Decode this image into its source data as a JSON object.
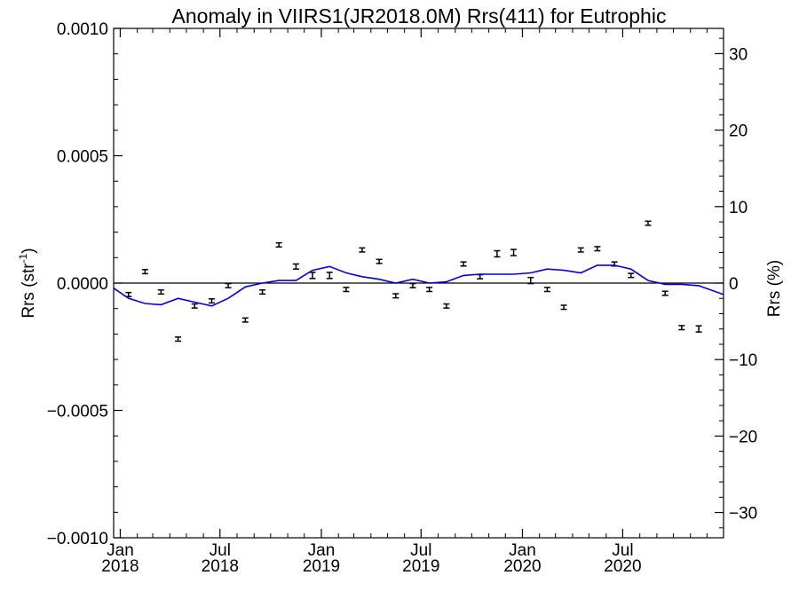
{
  "chart_data": {
    "type": "scatter",
    "title": "Anomaly in VIIRS1(JR2018.0M) Rrs(411) for Eutrophic",
    "ylabel_left": "Rrs (str",
    "ylabel_left_sup": "-1",
    "ylabel_left_close": ")",
    "ylabel_right": "Rrs (%)",
    "ylim_left": [
      -0.001,
      0.001
    ],
    "ylim_right": [
      -33.3,
      33.3
    ],
    "xlim": [
      "2017-12-20",
      "2020-12-31"
    ],
    "left_ticks": [
      {
        "value": 0.001,
        "label": "0.0010"
      },
      {
        "value": 0.0005,
        "label": "0.0005"
      },
      {
        "value": 0.0,
        "label": "0.0000"
      },
      {
        "value": -0.0005,
        "label": "−0.0005"
      },
      {
        "value": -0.001,
        "label": "−0.0010"
      }
    ],
    "right_ticks": [
      {
        "value": 30,
        "label": "30"
      },
      {
        "value": 20,
        "label": "20"
      },
      {
        "value": 10,
        "label": "10"
      },
      {
        "value": 0,
        "label": "0"
      },
      {
        "value": -10,
        "label": "−10"
      },
      {
        "value": -20,
        "label": "−20"
      },
      {
        "value": -30,
        "label": "−30"
      }
    ],
    "x_ticks": [
      {
        "date": "2018-01-01",
        "month": "Jan",
        "year": "2018"
      },
      {
        "date": "2018-07-01",
        "month": "Jul",
        "year": "2018"
      },
      {
        "date": "2019-01-01",
        "month": "Jan",
        "year": "2019"
      },
      {
        "date": "2019-07-01",
        "month": "Jul",
        "year": "2019"
      },
      {
        "date": "2020-01-01",
        "month": "Jan",
        "year": "2020"
      },
      {
        "date": "2020-07-01",
        "month": "Jul",
        "year": "2020"
      }
    ],
    "zero_line": true,
    "series": [
      {
        "kind": "points_with_errorbars",
        "color": "#000000",
        "points": [
          {
            "x": "2018-01-16",
            "y": -4.5e-05,
            "err": 8e-06
          },
          {
            "x": "2018-02-15",
            "y": 4.5e-05,
            "err": 8e-06
          },
          {
            "x": "2018-03-16",
            "y": -3.5e-05,
            "err": 8e-06
          },
          {
            "x": "2018-04-16",
            "y": -0.00022,
            "err": 8e-06
          },
          {
            "x": "2018-05-16",
            "y": -9e-05,
            "err": 8e-06
          },
          {
            "x": "2018-06-16",
            "y": -7e-05,
            "err": 8e-06
          },
          {
            "x": "2018-07-16",
            "y": -1e-05,
            "err": 8e-06
          },
          {
            "x": "2018-08-16",
            "y": -0.000145,
            "err": 8e-06
          },
          {
            "x": "2018-09-16",
            "y": -3.5e-05,
            "err": 8e-06
          },
          {
            "x": "2018-10-16",
            "y": 0.00015,
            "err": 8e-06
          },
          {
            "x": "2018-11-16",
            "y": 6.5e-05,
            "err": 1e-05
          },
          {
            "x": "2018-12-16",
            "y": 3e-05,
            "err": 1.2e-05
          },
          {
            "x": "2019-01-16",
            "y": 3e-05,
            "err": 1.2e-05
          },
          {
            "x": "2019-02-15",
            "y": -2.5e-05,
            "err": 8e-06
          },
          {
            "x": "2019-03-16",
            "y": 0.00013,
            "err": 8e-06
          },
          {
            "x": "2019-04-16",
            "y": 8.5e-05,
            "err": 8e-06
          },
          {
            "x": "2019-05-16",
            "y": -5e-05,
            "err": 8e-06
          },
          {
            "x": "2019-06-16",
            "y": -1e-05,
            "err": 8e-06
          },
          {
            "x": "2019-07-16",
            "y": -2.5e-05,
            "err": 8e-06
          },
          {
            "x": "2019-08-16",
            "y": -9e-05,
            "err": 8e-06
          },
          {
            "x": "2019-09-16",
            "y": 7.5e-05,
            "err": 8e-06
          },
          {
            "x": "2019-10-16",
            "y": 2.5e-05,
            "err": 8e-06
          },
          {
            "x": "2019-11-16",
            "y": 0.000115,
            "err": 1.2e-05
          },
          {
            "x": "2019-12-16",
            "y": 0.00012,
            "err": 1.2e-05
          },
          {
            "x": "2020-01-16",
            "y": 1e-05,
            "err": 1.2e-05
          },
          {
            "x": "2020-02-15",
            "y": -2.5e-05,
            "err": 8e-06
          },
          {
            "x": "2020-03-16",
            "y": -9.5e-05,
            "err": 8e-06
          },
          {
            "x": "2020-04-16",
            "y": 0.00013,
            "err": 8e-06
          },
          {
            "x": "2020-05-16",
            "y": 0.000135,
            "err": 8e-06
          },
          {
            "x": "2020-06-16",
            "y": 7.5e-05,
            "err": 8e-06
          },
          {
            "x": "2020-07-16",
            "y": 3e-05,
            "err": 8e-06
          },
          {
            "x": "2020-08-16",
            "y": 0.000235,
            "err": 8e-06
          },
          {
            "x": "2020-09-16",
            "y": -4e-05,
            "err": 8e-06
          },
          {
            "x": "2020-10-16",
            "y": -0.000175,
            "err": 8e-06
          },
          {
            "x": "2020-11-16",
            "y": -0.00018,
            "err": 1.2e-05
          }
        ]
      },
      {
        "kind": "line",
        "color": "#0000dd",
        "points": [
          {
            "x": "2017-12-20",
            "y": -2e-05
          },
          {
            "x": "2018-01-16",
            "y": -6e-05
          },
          {
            "x": "2018-02-15",
            "y": -8e-05
          },
          {
            "x": "2018-03-16",
            "y": -8.5e-05
          },
          {
            "x": "2018-04-16",
            "y": -6e-05
          },
          {
            "x": "2018-05-16",
            "y": -7.5e-05
          },
          {
            "x": "2018-06-16",
            "y": -9e-05
          },
          {
            "x": "2018-07-16",
            "y": -6e-05
          },
          {
            "x": "2018-08-16",
            "y": -1.5e-05
          },
          {
            "x": "2018-09-16",
            "y": 0.0
          },
          {
            "x": "2018-10-16",
            "y": 1e-05
          },
          {
            "x": "2018-11-16",
            "y": 1e-05
          },
          {
            "x": "2018-12-16",
            "y": 5e-05
          },
          {
            "x": "2019-01-16",
            "y": 6.5e-05
          },
          {
            "x": "2019-02-15",
            "y": 4e-05
          },
          {
            "x": "2019-03-16",
            "y": 2.5e-05
          },
          {
            "x": "2019-04-16",
            "y": 1.5e-05
          },
          {
            "x": "2019-05-16",
            "y": 0.0
          },
          {
            "x": "2019-06-16",
            "y": 1.5e-05
          },
          {
            "x": "2019-07-16",
            "y": 0.0
          },
          {
            "x": "2019-08-16",
            "y": 5e-06
          },
          {
            "x": "2019-09-16",
            "y": 3e-05
          },
          {
            "x": "2019-10-16",
            "y": 3.5e-05
          },
          {
            "x": "2019-11-16",
            "y": 3.5e-05
          },
          {
            "x": "2019-12-16",
            "y": 3.5e-05
          },
          {
            "x": "2020-01-16",
            "y": 4e-05
          },
          {
            "x": "2020-02-15",
            "y": 5.5e-05
          },
          {
            "x": "2020-03-16",
            "y": 5e-05
          },
          {
            "x": "2020-04-16",
            "y": 4e-05
          },
          {
            "x": "2020-05-16",
            "y": 7e-05
          },
          {
            "x": "2020-06-16",
            "y": 7e-05
          },
          {
            "x": "2020-07-16",
            "y": 5.5e-05
          },
          {
            "x": "2020-08-16",
            "y": 1e-05
          },
          {
            "x": "2020-09-16",
            "y": -5e-06
          },
          {
            "x": "2020-10-16",
            "y": -5e-06
          },
          {
            "x": "2020-11-16",
            "y": -1e-05
          },
          {
            "x": "2020-12-31",
            "y": -4.5e-05
          }
        ]
      }
    ]
  }
}
